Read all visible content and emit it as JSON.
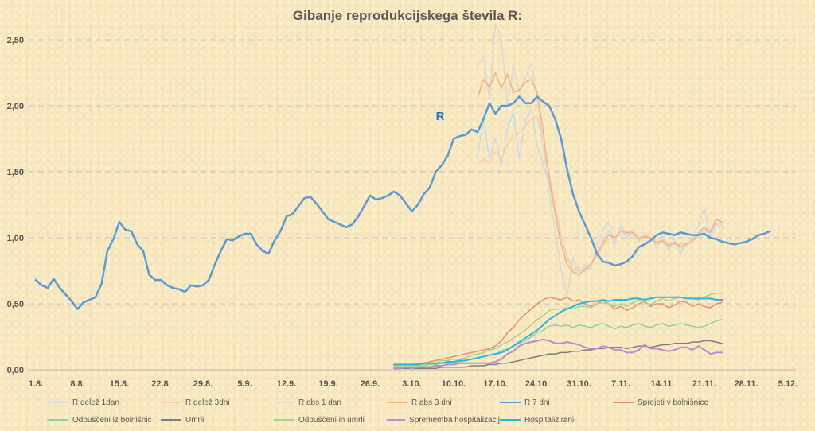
{
  "chart_data": {
    "type": "line",
    "title": "Gibanje reprodukcijskega števila R:",
    "annotation": "R",
    "xlabel": "",
    "ylabel": "",
    "ylim": [
      0,
      2.5
    ],
    "x_range": [
      "1.8.",
      "5.12."
    ],
    "y_ticks": [
      "0,00",
      "0,50",
      "1,00",
      "1,50",
      "2,00",
      "2,50"
    ],
    "x_ticks": [
      "1.8.",
      "8.8.",
      "15.8.",
      "22.8.",
      "29.8.",
      "5.9.",
      "12.9.",
      "19.9.",
      "26.9.",
      "3.10.",
      "10.10.",
      "17.10.",
      "24.10.",
      "31.10.",
      "7.11.",
      "14.11.",
      "21.11.",
      "28.11.",
      "5.12."
    ],
    "grid": "horizontal dashed",
    "legend_position": "bottom",
    "series": [
      {
        "name": "R delež 1dan",
        "color": "#c7d9ec",
        "width": 1.5,
        "x_start": 74,
        "values": [
          1.62,
          1.9,
          1.6,
          1.75,
          1.55,
          1.82,
          1.95,
          1.6,
          1.88,
          1.98,
          1.7,
          1.55,
          1.4,
          1.2,
          1.0,
          0.85,
          0.76,
          0.78,
          0.74,
          0.8,
          0.86,
          0.98,
          1.05,
          0.96,
          1.08,
          1.0,
          1.04,
          0.98,
          1.02,
          1.0,
          0.95,
          1.0,
          0.93,
          0.97,
          0.9,
          0.96,
          0.98,
          1.05,
          1.08,
          1.0,
          1.1,
          1.08
        ]
      },
      {
        "name": "R delež 3dni",
        "color": "#f8cba8",
        "width": 1.5,
        "x_start": 74,
        "values": [
          1.56,
          1.6,
          1.57,
          1.65,
          1.6,
          1.7,
          1.78,
          1.8,
          1.85,
          1.9,
          1.92,
          1.7,
          1.48,
          1.25,
          1.02,
          0.86,
          0.76,
          0.75,
          0.77,
          0.8,
          0.86,
          0.94,
          0.99,
          1.0,
          1.02,
          1.03,
          1.02,
          1.0,
          1.0,
          1.0,
          0.98,
          0.97,
          0.96,
          0.95,
          0.95,
          0.96,
          0.98,
          1.02,
          1.05,
          1.06,
          1.1,
          1.12
        ]
      },
      {
        "name": "R abs 1 dan",
        "color": "#d9d9d9",
        "width": 1.5,
        "x_start": 74,
        "values": [
          2.3,
          2.38,
          2.05,
          2.62,
          2.5,
          2.0,
          2.3,
          2.1,
          2.22,
          2.32,
          2.05,
          1.7,
          1.35,
          1.05,
          0.75,
          0.55,
          0.85,
          0.7,
          0.8,
          0.76,
          0.95,
          1.05,
          1.12,
          0.95,
          1.1,
          1.02,
          1.06,
          0.97,
          1.04,
          1.0,
          0.92,
          1.02,
          0.9,
          0.98,
          0.88,
          0.95,
          1.0,
          1.1,
          1.22,
          1.0,
          1.14,
          1.1
        ]
      },
      {
        "name": "R abs 3 dni",
        "color": "#f4b183",
        "width": 1.5,
        "x_start": 74,
        "values": [
          2.06,
          2.2,
          2.14,
          2.25,
          2.13,
          2.24,
          2.1,
          2.12,
          2.18,
          2.2,
          2.1,
          1.8,
          1.45,
          1.18,
          0.95,
          0.8,
          0.74,
          0.72,
          0.76,
          0.8,
          0.88,
          0.96,
          1.02,
          1.0,
          1.05,
          1.04,
          1.04,
          1.0,
          1.01,
          1.0,
          0.96,
          0.98,
          0.94,
          0.96,
          0.93,
          0.95,
          0.97,
          1.03,
          1.08,
          1.04,
          1.14,
          1.12
        ]
      },
      {
        "name": "R 7 dni",
        "color": "#5b9bd5",
        "width": 2.5,
        "x_start": 0,
        "values": [
          0.68,
          0.64,
          0.62,
          0.69,
          0.62,
          0.57,
          0.52,
          0.46,
          0.51,
          0.53,
          0.55,
          0.65,
          0.9,
          0.99,
          1.12,
          1.06,
          1.05,
          0.95,
          0.9,
          0.72,
          0.68,
          0.68,
          0.64,
          0.62,
          0.61,
          0.59,
          0.64,
          0.63,
          0.64,
          0.68,
          0.8,
          0.9,
          0.99,
          0.98,
          1.01,
          1.03,
          1.03,
          0.95,
          0.9,
          0.88,
          0.98,
          1.05,
          1.16,
          1.18,
          1.24,
          1.3,
          1.31,
          1.26,
          1.2,
          1.14,
          1.12,
          1.1,
          1.08,
          1.1,
          1.16,
          1.24,
          1.32,
          1.29,
          1.3,
          1.32,
          1.35,
          1.32,
          1.26,
          1.2,
          1.25,
          1.33,
          1.38,
          1.5,
          1.55,
          1.62,
          1.75,
          1.77,
          1.78,
          1.82,
          1.8,
          1.9,
          2.02,
          1.94,
          2.0,
          2.0,
          2.02,
          2.07,
          2.02,
          2.02,
          2.07,
          2.03,
          2.0,
          1.9,
          1.75,
          1.52,
          1.33,
          1.2,
          1.1,
          1.0,
          0.88,
          0.82,
          0.81,
          0.79,
          0.8,
          0.82,
          0.86,
          0.93,
          0.95,
          0.98,
          1.02,
          1.04,
          1.03,
          1.02,
          1.04,
          1.03,
          1.02,
          1.02,
          1.03,
          1.0,
          0.99,
          0.97,
          0.96,
          0.95,
          0.96,
          0.97,
          0.99,
          1.02,
          1.03,
          1.05
        ]
      },
      {
        "name": "Sprejeti v bolnišnice",
        "color": "#e38f76",
        "width": 1.5,
        "x_start": 60,
        "values": [
          0.03,
          0.03,
          0.04,
          0.04,
          0.05,
          0.05,
          0.06,
          0.07,
          0.08,
          0.09,
          0.1,
          0.11,
          0.12,
          0.13,
          0.14,
          0.15,
          0.16,
          0.18,
          0.22,
          0.28,
          0.32,
          0.38,
          0.42,
          0.46,
          0.5,
          0.53,
          0.55,
          0.54,
          0.53,
          0.55,
          0.52,
          0.53,
          0.5,
          0.48,
          0.5,
          0.53,
          0.5,
          0.46,
          0.48,
          0.45,
          0.47,
          0.5,
          0.52,
          0.48,
          0.5,
          0.5,
          0.47,
          0.49,
          0.52,
          0.51,
          0.48,
          0.5,
          0.48,
          0.47,
          0.5,
          0.51
        ]
      },
      {
        "name": "Odpuščeni iz bolnišnic",
        "color": "#8fd19e",
        "width": 1.5,
        "x_start": 60,
        "values": [
          0.02,
          0.02,
          0.02,
          0.03,
          0.03,
          0.03,
          0.04,
          0.04,
          0.05,
          0.05,
          0.06,
          0.06,
          0.07,
          0.08,
          0.09,
          0.1,
          0.11,
          0.12,
          0.14,
          0.16,
          0.18,
          0.2,
          0.22,
          0.25,
          0.28,
          0.3,
          0.33,
          0.34,
          0.33,
          0.34,
          0.32,
          0.34,
          0.33,
          0.32,
          0.34,
          0.35,
          0.33,
          0.31,
          0.33,
          0.32,
          0.34,
          0.35,
          0.33,
          0.32,
          0.34,
          0.35,
          0.33,
          0.34,
          0.35,
          0.34,
          0.33,
          0.32,
          0.33,
          0.35,
          0.37,
          0.38
        ]
      },
      {
        "name": "Umrli",
        "color": "#7f7f7f",
        "width": 1.5,
        "x_start": 60,
        "values": [
          0.01,
          0.01,
          0.01,
          0.01,
          0.01,
          0.01,
          0.01,
          0.01,
          0.02,
          0.02,
          0.02,
          0.02,
          0.02,
          0.03,
          0.03,
          0.03,
          0.04,
          0.04,
          0.05,
          0.05,
          0.06,
          0.07,
          0.08,
          0.09,
          0.1,
          0.11,
          0.12,
          0.12,
          0.13,
          0.13,
          0.14,
          0.14,
          0.15,
          0.15,
          0.16,
          0.16,
          0.17,
          0.17,
          0.17,
          0.16,
          0.17,
          0.18,
          0.18,
          0.17,
          0.18,
          0.19,
          0.19,
          0.2,
          0.2,
          0.2,
          0.21,
          0.21,
          0.22,
          0.22,
          0.21,
          0.2
        ]
      },
      {
        "name": "Odpuščeni in umrli",
        "color": "#a9d18e",
        "width": 1.5,
        "x_start": 60,
        "values": [
          0.03,
          0.03,
          0.03,
          0.04,
          0.04,
          0.04,
          0.05,
          0.05,
          0.07,
          0.07,
          0.08,
          0.08,
          0.09,
          0.11,
          0.12,
          0.13,
          0.15,
          0.16,
          0.19,
          0.21,
          0.24,
          0.27,
          0.3,
          0.34,
          0.38,
          0.41,
          0.45,
          0.46,
          0.46,
          0.47,
          0.46,
          0.48,
          0.48,
          0.47,
          0.5,
          0.51,
          0.5,
          0.48,
          0.5,
          0.48,
          0.51,
          0.53,
          0.51,
          0.49,
          0.52,
          0.54,
          0.52,
          0.54,
          0.55,
          0.54,
          0.54,
          0.53,
          0.55,
          0.57,
          0.58,
          0.58
        ]
      },
      {
        "name": "Sprememba hospitalizacij",
        "color": "#b790c8",
        "width": 2,
        "x_start": 60,
        "values": [
          0.01,
          0.01,
          0.02,
          0.01,
          0.02,
          0.02,
          0.02,
          0.03,
          0.03,
          0.04,
          0.04,
          0.05,
          0.05,
          0.05,
          0.05,
          0.05,
          0.05,
          0.06,
          0.08,
          0.12,
          0.14,
          0.18,
          0.2,
          0.21,
          0.22,
          0.23,
          0.22,
          0.2,
          0.2,
          0.21,
          0.2,
          0.19,
          0.17,
          0.16,
          0.16,
          0.18,
          0.17,
          0.15,
          0.15,
          0.13,
          0.13,
          0.15,
          0.19,
          0.16,
          0.16,
          0.15,
          0.14,
          0.15,
          0.17,
          0.17,
          0.15,
          0.18,
          0.15,
          0.12,
          0.13,
          0.13
        ]
      },
      {
        "name": "Hospitalizirani",
        "color": "#2eb5e0",
        "width": 2,
        "x_start": 60,
        "values": [
          0.04,
          0.04,
          0.04,
          0.04,
          0.04,
          0.05,
          0.05,
          0.05,
          0.05,
          0.06,
          0.06,
          0.07,
          0.07,
          0.08,
          0.09,
          0.1,
          0.11,
          0.12,
          0.13,
          0.15,
          0.18,
          0.21,
          0.24,
          0.27,
          0.3,
          0.34,
          0.38,
          0.41,
          0.44,
          0.46,
          0.48,
          0.5,
          0.51,
          0.52,
          0.52,
          0.53,
          0.52,
          0.53,
          0.53,
          0.53,
          0.54,
          0.54,
          0.53,
          0.54,
          0.55,
          0.55,
          0.55,
          0.55,
          0.55,
          0.54,
          0.54,
          0.54,
          0.54,
          0.54,
          0.53,
          0.53
        ]
      }
    ]
  }
}
